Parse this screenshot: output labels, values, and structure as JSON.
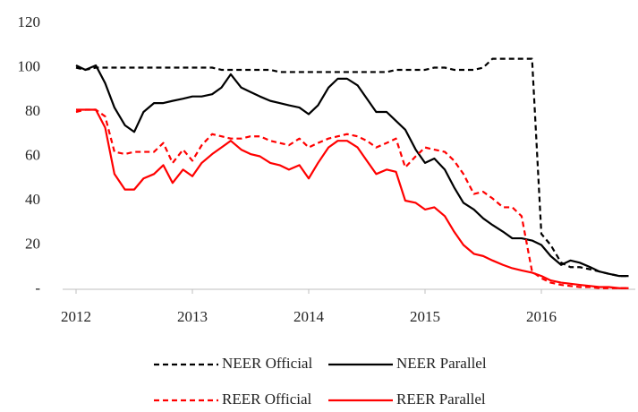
{
  "chart_data": {
    "type": "line",
    "x": [
      2012,
      2012.08,
      2012.17,
      2012.25,
      2012.33,
      2012.42,
      2012.5,
      2012.58,
      2012.67,
      2012.75,
      2012.83,
      2012.92,
      2013,
      2013.08,
      2013.17,
      2013.25,
      2013.33,
      2013.42,
      2013.5,
      2013.58,
      2013.67,
      2013.75,
      2013.83,
      2013.92,
      2014,
      2014.08,
      2014.17,
      2014.25,
      2014.33,
      2014.42,
      2014.5,
      2014.58,
      2014.67,
      2014.75,
      2014.83,
      2014.92,
      2015,
      2015.08,
      2015.17,
      2015.25,
      2015.33,
      2015.42,
      2015.5,
      2015.58,
      2015.67,
      2015.75,
      2015.83,
      2015.92,
      2016,
      2016.08,
      2016.17,
      2016.25,
      2016.33,
      2016.42,
      2016.5,
      2016.58,
      2016.67,
      2016.75
    ],
    "xlim": [
      2012,
      2016.8
    ],
    "xticks": [
      2012,
      2013,
      2014,
      2015,
      2016
    ],
    "ylim": [
      0,
      120
    ],
    "yticks": [
      {
        "value": 0,
        "label": "-"
      },
      20,
      40,
      60,
      80,
      100,
      120
    ],
    "series": [
      {
        "name": "NEER Official",
        "color": "#000000",
        "dashed": true,
        "values": [
          100,
          99,
          100,
          100,
          100,
          100,
          100,
          100,
          100,
          100,
          100,
          100,
          100,
          100,
          100,
          99,
          99,
          99,
          99,
          99,
          99,
          98,
          98,
          98,
          98,
          98,
          98,
          98,
          98,
          98,
          98,
          98,
          98,
          99,
          99,
          99,
          99,
          100,
          100,
          99,
          99,
          99,
          100,
          104,
          104,
          104,
          104,
          104,
          25,
          20,
          12,
          10,
          10,
          9,
          8,
          7,
          6,
          6
        ]
      },
      {
        "name": "NEER Parallel",
        "color": "#000000",
        "dashed": false,
        "values": [
          101,
          99,
          101,
          93,
          82,
          74,
          71,
          80,
          84,
          84,
          85,
          86,
          87,
          87,
          88,
          91,
          97,
          91,
          89,
          87,
          85,
          84,
          83,
          82,
          79,
          83,
          91,
          95,
          95,
          92,
          86,
          80,
          80,
          76,
          72,
          63,
          57,
          59,
          54,
          46,
          39,
          36,
          32,
          29,
          26,
          23,
          23,
          22,
          20,
          15,
          11,
          13,
          12,
          10,
          8,
          7,
          6,
          6
        ]
      },
      {
        "name": "REER Official",
        "color": "#ff0000",
        "dashed": true,
        "values": [
          80,
          81,
          81,
          78,
          62,
          61,
          62,
          62,
          62,
          66,
          57,
          63,
          58,
          65,
          70,
          69,
          68,
          68,
          69,
          69,
          67,
          66,
          65,
          68,
          64,
          66,
          68,
          69,
          70,
          69,
          67,
          64,
          66,
          68,
          55,
          60,
          64,
          63,
          62,
          58,
          52,
          43,
          44,
          41,
          37,
          37,
          33,
          8,
          5,
          3,
          2,
          1.5,
          1,
          1,
          0.5,
          0.5,
          0.5,
          0.5
        ]
      },
      {
        "name": "REER Parallel",
        "color": "#ff0000",
        "dashed": false,
        "values": [
          81,
          81,
          81,
          73,
          52,
          45,
          45,
          50,
          52,
          56,
          48,
          54,
          51,
          57,
          61,
          64,
          67,
          63,
          61,
          60,
          57,
          56,
          54,
          56,
          50,
          57,
          64,
          67,
          67,
          64,
          58,
          52,
          54,
          53,
          40,
          39,
          36,
          37,
          33,
          26,
          20,
          16,
          15,
          13,
          11,
          9.5,
          8.5,
          7.5,
          6,
          4,
          3,
          2.5,
          2,
          1.5,
          1,
          1,
          0.5,
          0.5
        ]
      }
    ]
  }
}
